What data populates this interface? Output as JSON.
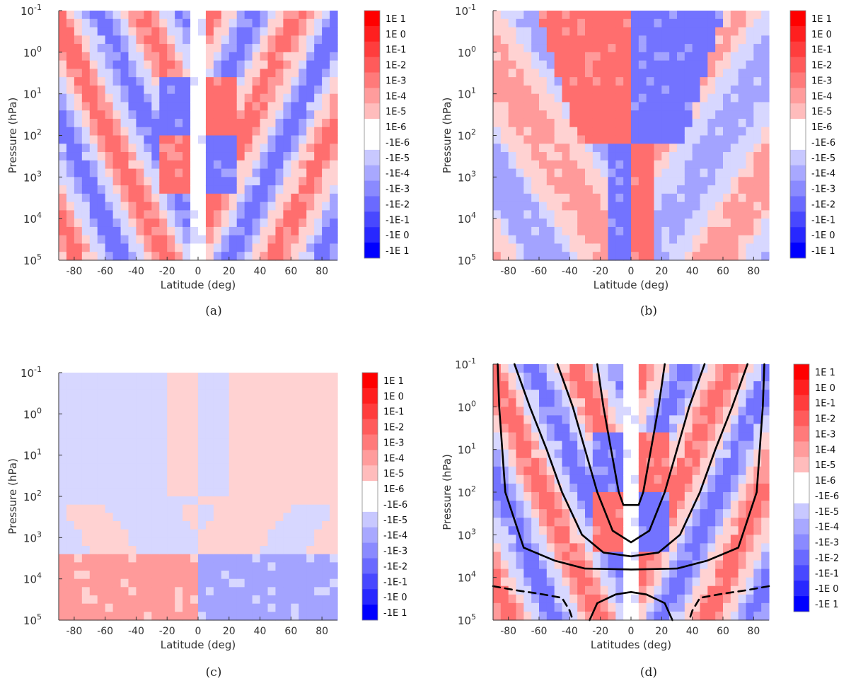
{
  "chart_data": [
    {
      "type": "heatmap",
      "caption": "(a)",
      "xlabel": "Latitude (deg)",
      "ylabel": "Pressure (hPa)",
      "xlim": [
        -90,
        90
      ],
      "ylim": [
        100000,
        0.1
      ],
      "y_scale": "log",
      "x_ticks": [
        "-80",
        "-60",
        "-40",
        "-20",
        "0",
        "20",
        "40",
        "60",
        "80"
      ],
      "y_ticks": [
        {
          "base": "10",
          "exp": "-1"
        },
        {
          "base": "10",
          "exp": "0"
        },
        {
          "base": "10",
          "exp": "1"
        },
        {
          "base": "10",
          "exp": "2"
        },
        {
          "base": "10",
          "exp": "3"
        },
        {
          "base": "10",
          "exp": "4"
        },
        {
          "base": "10",
          "exp": "5"
        }
      ],
      "colorbar_labels": [
        "1E 1",
        "1E 0",
        "1E-1",
        "1E-2",
        "1E-3",
        "1E-4",
        "1E-5",
        "1E-6",
        "-1E-6",
        "-1E-5",
        "-1E-4",
        "-1E-3",
        "-1E-2",
        "-1E-1",
        "-1E 0",
        "-1E 1"
      ],
      "pattern": "a",
      "contours": []
    },
    {
      "type": "heatmap",
      "caption": "(b)",
      "xlabel": "Latitude (deg)",
      "ylabel": "Pressure (hPa)",
      "xlim": [
        -90,
        90
      ],
      "ylim": [
        100000,
        0.1
      ],
      "y_scale": "log",
      "x_ticks": [
        "-80",
        "-60",
        "-40",
        "-20",
        "0",
        "20",
        "40",
        "60",
        "80"
      ],
      "y_ticks": [
        {
          "base": "10",
          "exp": "-1"
        },
        {
          "base": "10",
          "exp": "0"
        },
        {
          "base": "10",
          "exp": "1"
        },
        {
          "base": "10",
          "exp": "2"
        },
        {
          "base": "10",
          "exp": "3"
        },
        {
          "base": "10",
          "exp": "4"
        },
        {
          "base": "10",
          "exp": "5"
        }
      ],
      "colorbar_labels": [
        "1E 1",
        "1E 0",
        "1E-1",
        "1E-2",
        "1E-3",
        "1E-4",
        "1E-5",
        "1E-6",
        "-1E-6",
        "-1E-5",
        "-1E-4",
        "-1E-3",
        "-1E-2",
        "-1E-1",
        "-1E 0",
        "-1E 1"
      ],
      "pattern": "b",
      "contours": []
    },
    {
      "type": "heatmap",
      "caption": "(c)",
      "xlabel": "Latitude (deg)",
      "ylabel": "Pressure (hPa)",
      "xlim": [
        -90,
        90
      ],
      "ylim": [
        100000,
        0.1
      ],
      "y_scale": "log",
      "x_ticks": [
        "-80",
        "-60",
        "-40",
        "-20",
        "0",
        "20",
        "40",
        "60",
        "80"
      ],
      "y_ticks": [
        {
          "base": "10",
          "exp": "-1"
        },
        {
          "base": "10",
          "exp": "0"
        },
        {
          "base": "10",
          "exp": "1"
        },
        {
          "base": "10",
          "exp": "2"
        },
        {
          "base": "10",
          "exp": "3"
        },
        {
          "base": "10",
          "exp": "4"
        },
        {
          "base": "10",
          "exp": "5"
        }
      ],
      "colorbar_labels": [
        "1E 1",
        "1E 0",
        "1E-1",
        "1E-2",
        "1E-3",
        "1E-4",
        "1E-5",
        "1E-6",
        "-1E-6",
        "-1E-5",
        "-1E-4",
        "-1E-3",
        "-1E-2",
        "-1E-1",
        "-1E 0",
        "-1E 1"
      ],
      "pattern": "c",
      "contours": []
    },
    {
      "type": "heatmap",
      "caption": "(d)",
      "xlabel": "Latitudes (deg)",
      "ylabel": "Pressure (hPa)",
      "xlim": [
        -90,
        90
      ],
      "ylim": [
        100000,
        0.1
      ],
      "y_scale": "log",
      "x_ticks": [
        "-80",
        "-60",
        "-40",
        "-20",
        "0",
        "20",
        "40",
        "60",
        "80"
      ],
      "y_ticks": [
        {
          "base": "10",
          "exp": "-1"
        },
        {
          "base": "10",
          "exp": "0"
        },
        {
          "base": "10",
          "exp": "1"
        },
        {
          "base": "10",
          "exp": "2"
        },
        {
          "base": "10",
          "exp": "3"
        },
        {
          "base": "10",
          "exp": "4"
        },
        {
          "base": "10",
          "exp": "5"
        }
      ],
      "colorbar_labels": [
        "1E 1",
        "1E 0",
        "1E-1",
        "1E-2",
        "1E-3",
        "1E-4",
        "1E-5",
        "1E-6",
        "-1E-6",
        "-1E-5",
        "-1E-4",
        "-1E-3",
        "-1E-2",
        "-1E-1",
        "-1E 0",
        "-1E 1"
      ],
      "pattern": "a",
      "contours": [
        {
          "style": "solid",
          "points": [
            [
              -22,
              0.1
            ],
            [
              -18,
              1
            ],
            [
              -13,
              10
            ],
            [
              -8,
              100
            ],
            [
              -5,
              200
            ],
            [
              5,
              200
            ],
            [
              8,
              100
            ],
            [
              13,
              10
            ],
            [
              18,
              1
            ],
            [
              22,
              0.1
            ]
          ]
        },
        {
          "style": "solid",
          "points": [
            [
              -48,
              0.1
            ],
            [
              -38,
              1
            ],
            [
              -30,
              10
            ],
            [
              -22,
              100
            ],
            [
              -12,
              800
            ],
            [
              0,
              1500
            ],
            [
              12,
              800
            ],
            [
              22,
              100
            ],
            [
              30,
              10
            ],
            [
              38,
              1
            ],
            [
              48,
              0.1
            ]
          ]
        },
        {
          "style": "solid",
          "points": [
            [
              -76,
              0.1
            ],
            [
              -66,
              1
            ],
            [
              -55,
              10
            ],
            [
              -45,
              100
            ],
            [
              -32,
              1000
            ],
            [
              -18,
              2600
            ],
            [
              0,
              3200
            ],
            [
              18,
              2600
            ],
            [
              32,
              1000
            ],
            [
              45,
              100
            ],
            [
              55,
              10
            ],
            [
              66,
              1
            ],
            [
              76,
              0.1
            ]
          ]
        },
        {
          "style": "solid",
          "points": [
            [
              -87,
              0.1
            ],
            [
              -86,
              1
            ],
            [
              -84,
              10
            ],
            [
              -82,
              100
            ],
            [
              -70,
              2000
            ],
            [
              -50,
              4000
            ],
            [
              -30,
              6200
            ],
            [
              0,
              6500
            ],
            [
              30,
              6200
            ],
            [
              50,
              4000
            ],
            [
              70,
              2000
            ],
            [
              82,
              100
            ],
            [
              84,
              10
            ],
            [
              86,
              1
            ],
            [
              87,
              0.1
            ]
          ]
        },
        {
          "style": "solid",
          "points": [
            [
              -27,
              100000
            ],
            [
              -22,
              40000
            ],
            [
              -10,
              25000
            ],
            [
              0,
              22000
            ],
            [
              10,
              25000
            ],
            [
              22,
              40000
            ],
            [
              27,
              100000
            ]
          ]
        },
        {
          "style": "dashed",
          "points": [
            [
              -90,
              16000
            ],
            [
              -75,
              20000
            ],
            [
              -60,
              24000
            ],
            [
              -45,
              30000
            ],
            [
              -40,
              60000
            ],
            [
              -38,
              100000
            ]
          ]
        },
        {
          "style": "dashed",
          "points": [
            [
              90,
              16000
            ],
            [
              75,
              20000
            ],
            [
              60,
              24000
            ],
            [
              45,
              30000
            ],
            [
              40,
              60000
            ],
            [
              38,
              100000
            ]
          ]
        }
      ]
    }
  ]
}
